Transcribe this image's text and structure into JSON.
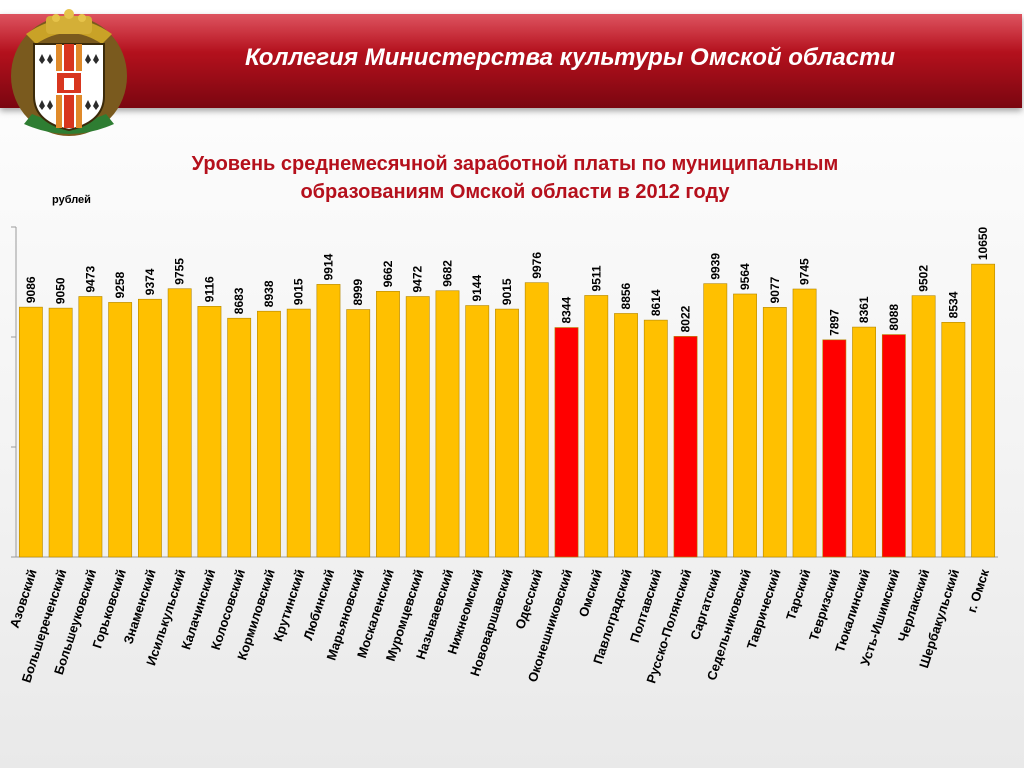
{
  "header": {
    "title": "Коллегия Министерства культуры Омской области"
  },
  "colors": {
    "bar_normal": "#ffc000",
    "bar_highlight": "#ff0000",
    "header": "#c0141f",
    "title_text": "#b5101c"
  },
  "chart_data": {
    "type": "bar",
    "title_line1": "Уровень среднемесячной заработной платы по муниципальным",
    "title_line2": "образованиям Омской области в 2012 году",
    "ylabel": "рублей",
    "ylim": [
      0,
      12000
    ],
    "categories": [
      "Азовский",
      "Большереченский",
      "Большеуковский",
      "Горьковский",
      "Знаменский",
      "Исилькульский",
      "Калачинский",
      "Колосовский",
      "Кормиловский",
      "Крутинский",
      "Любинский",
      "Марьяновский",
      "Москаленский",
      "Муромцевский",
      "Называевский",
      "Нижнеомский",
      "Нововаршавский",
      "Одесский",
      "Оконешниковский",
      "Омский",
      "Павлоградский",
      "Полтавский",
      "Русско-Полянский",
      "Саргатский",
      "Седельниковский",
      "Таврический",
      "Тарский",
      "Тевризский",
      "Тюкалинский",
      "Усть-Ишимский",
      "Черлакский",
      "Шербакульский",
      "г. Омск"
    ],
    "values": [
      9086,
      9050,
      9473,
      9258,
      9374,
      9755,
      9116,
      8683,
      8938,
      9015,
      9914,
      8999,
      9662,
      9472,
      9682,
      9144,
      9015,
      9976,
      8344,
      9511,
      8856,
      8614,
      8022,
      9939,
      9564,
      9077,
      9745,
      7897,
      8361,
      8088,
      9502,
      8534,
      10650
    ],
    "value_labels": [
      "9086",
      "9050",
      "9473",
      "9258",
      "9374",
      "9755",
      "9116",
      "8683",
      "8938",
      "9015",
      "9914",
      "8999",
      "9662",
      "9472",
      "9682",
      "9144",
      "9015",
      "9976",
      "8344",
      "9511",
      "8856",
      "8614",
      "8022",
      "9939",
      "9564",
      "9077",
      "9745",
      "7897",
      "8361",
      "8088",
      "9502",
      "8534",
      "10650"
    ],
    "highlighted": [
      false,
      false,
      false,
      false,
      false,
      false,
      false,
      false,
      false,
      false,
      false,
      false,
      false,
      false,
      false,
      false,
      false,
      false,
      true,
      false,
      false,
      false,
      true,
      false,
      false,
      false,
      false,
      true,
      false,
      true,
      false,
      false,
      false
    ],
    "grid": false,
    "legend": "none"
  }
}
